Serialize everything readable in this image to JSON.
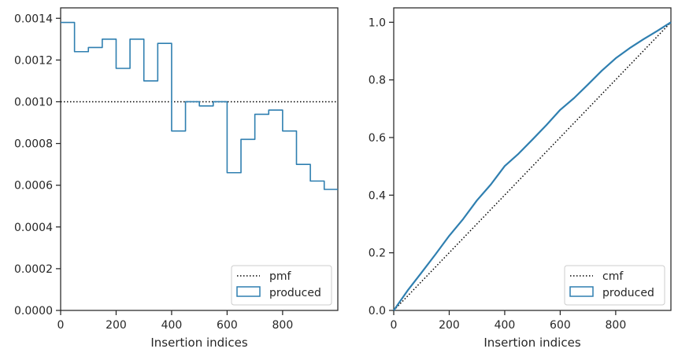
{
  "chart_data": [
    {
      "type": "step",
      "panel": "left",
      "xlabel": "Insertion indices",
      "ylabel": "",
      "xlim": [
        0,
        999
      ],
      "ylim": [
        0,
        0.00145
      ],
      "xticks": [
        0,
        200,
        400,
        600,
        800
      ],
      "xtick_labels": [
        "0",
        "200",
        "400",
        "600",
        "800"
      ],
      "yticks": [
        0,
        0.0002,
        0.0004,
        0.0006,
        0.0008,
        0.001,
        0.0012,
        0.0014
      ],
      "ytick_labels": [
        "0.0000",
        "0.0002",
        "0.0004",
        "0.0006",
        "0.0008",
        "0.0010",
        "0.0012",
        "0.0014"
      ],
      "legend_position": "lower right",
      "reference": {
        "name": "pmf",
        "value": 0.001,
        "style": "dotted",
        "color": "#000000"
      },
      "series": [
        {
          "name": "produced",
          "color": "#2f7fb0",
          "bin_edges": [
            0,
            50,
            100,
            150,
            200,
            250,
            300,
            350,
            400,
            450,
            500,
            550,
            600,
            650,
            700,
            750,
            800,
            850,
            900,
            950,
            999
          ],
          "values": [
            0.00138,
            0.00124,
            0.00126,
            0.0013,
            0.00116,
            0.0013,
            0.0011,
            0.00128,
            0.00086,
            0.001,
            0.00098,
            0.001,
            0.00066,
            0.00082,
            0.00094,
            0.00096,
            0.00086,
            0.0007,
            0.00062,
            0.00058
          ]
        }
      ]
    },
    {
      "type": "line",
      "panel": "right",
      "xlabel": "Insertion indices",
      "ylabel": "",
      "xlim": [
        0,
        999
      ],
      "ylim": [
        0,
        1.05
      ],
      "xticks": [
        0,
        200,
        400,
        600,
        800
      ],
      "xtick_labels": [
        "0",
        "200",
        "400",
        "600",
        "800"
      ],
      "yticks": [
        0,
        0.2,
        0.4,
        0.6,
        0.8,
        1.0
      ],
      "ytick_labels": [
        "0.0",
        "0.2",
        "0.4",
        "0.6",
        "0.8",
        "1.0"
      ],
      "legend_position": "lower right",
      "reference": {
        "name": "cmf",
        "points": [
          [
            0,
            0
          ],
          [
            999,
            1.0
          ]
        ],
        "style": "dotted",
        "color": "#000000"
      },
      "series": [
        {
          "name": "produced",
          "color": "#2f7fb0",
          "x": [
            0,
            50,
            100,
            150,
            200,
            250,
            300,
            350,
            400,
            450,
            500,
            550,
            600,
            650,
            700,
            750,
            800,
            850,
            900,
            950,
            999
          ],
          "y": [
            0.0,
            0.069,
            0.131,
            0.194,
            0.259,
            0.317,
            0.382,
            0.437,
            0.501,
            0.544,
            0.593,
            0.643,
            0.696,
            0.737,
            0.784,
            0.832,
            0.875,
            0.91,
            0.941,
            0.97,
            1.0
          ]
        }
      ]
    }
  ],
  "legend": {
    "left": {
      "ref_label": "pmf",
      "series_label": "produced"
    },
    "right": {
      "ref_label": "cmf",
      "series_label": "produced"
    }
  }
}
